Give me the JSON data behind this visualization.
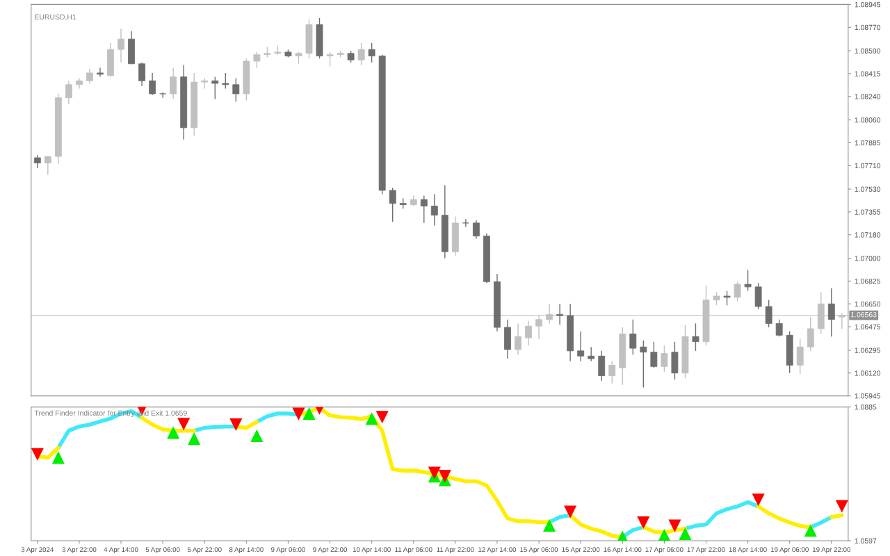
{
  "chart_data": [
    {
      "type": "candlestick",
      "title": "EURUSD,H1",
      "categories": [
        null,
        null,
        null,
        null,
        null,
        null,
        null,
        null,
        null,
        null,
        null,
        null,
        null,
        null,
        null,
        null,
        null,
        null,
        null,
        null,
        null,
        null,
        null,
        null,
        null,
        null,
        null,
        null,
        null,
        null,
        null,
        null,
        null,
        null,
        null,
        null,
        null,
        null,
        null,
        null,
        null,
        null,
        null,
        null,
        null,
        null,
        null,
        null,
        null,
        null,
        null,
        null,
        null,
        null,
        null,
        null,
        null,
        null,
        null,
        null,
        null,
        null,
        null,
        null,
        null,
        null,
        null,
        null,
        null,
        null,
        null,
        null,
        null,
        null,
        null,
        null,
        null,
        null
      ],
      "ohlc": [
        [
          1.0777,
          1.0779,
          1.0769,
          1.0773
        ],
        [
          1.0773,
          1.0778,
          1.0764,
          1.0778
        ],
        [
          1.0778,
          1.0826,
          1.0772,
          1.0823
        ],
        [
          1.0823,
          1.0836,
          1.0818,
          1.0833
        ],
        [
          1.0833,
          1.0838,
          1.083,
          1.0836
        ],
        [
          1.0836,
          1.0845,
          1.0834,
          1.0842
        ],
        [
          1.0842,
          1.0846,
          1.0839,
          1.0841
        ],
        [
          1.084,
          1.0865,
          1.0839,
          1.086
        ],
        [
          1.086,
          1.0876,
          1.085,
          1.0868
        ],
        [
          1.0868,
          1.0874,
          1.0849,
          1.0849
        ],
        [
          1.0849,
          1.085,
          1.0832,
          1.0836
        ],
        [
          1.0836,
          1.0842,
          1.0825,
          1.0826
        ],
        [
          1.0826,
          1.0827,
          1.0823,
          1.0826
        ],
        [
          1.0826,
          1.0846,
          1.0822,
          1.0839
        ],
        [
          1.0839,
          1.0848,
          1.0791,
          1.08
        ],
        [
          1.08,
          1.0842,
          1.0794,
          1.0835
        ],
        [
          1.0835,
          1.0838,
          1.083,
          1.0836
        ],
        [
          1.0836,
          1.0839,
          1.0822,
          1.0834
        ],
        [
          1.0834,
          1.0842,
          1.083,
          1.0833
        ],
        [
          1.0833,
          1.0838,
          1.082,
          1.0826
        ],
        [
          1.0826,
          1.0853,
          1.0821,
          1.0851
        ],
        [
          1.0851,
          1.0858,
          1.0846,
          1.0856
        ],
        [
          1.0856,
          1.0862,
          1.0854,
          1.0857
        ],
        [
          1.0857,
          1.0863,
          1.0856,
          1.0858
        ],
        [
          1.0858,
          1.086,
          1.0854,
          1.0855
        ],
        [
          1.0855,
          1.0858,
          1.0849,
          1.0857
        ],
        [
          1.0857,
          1.0883,
          1.0853,
          1.0879
        ],
        [
          1.0879,
          1.0884,
          1.0853,
          1.0855
        ],
        [
          1.0855,
          1.0858,
          1.0847,
          1.0856
        ],
        [
          1.0856,
          1.0859,
          1.0854,
          1.0857
        ],
        [
          1.0857,
          1.0859,
          1.085,
          1.0852
        ],
        [
          1.0852,
          1.0865,
          1.0848,
          1.086
        ],
        [
          1.086,
          1.0865,
          1.085,
          1.0855
        ],
        [
          1.0855,
          1.0856,
          1.0749,
          1.0752
        ],
        [
          1.0752,
          1.0754,
          1.0728,
          1.0742
        ],
        [
          1.0742,
          1.0746,
          1.0738,
          1.0741
        ],
        [
          1.0741,
          1.0748,
          1.074,
          1.0745
        ],
        [
          1.0745,
          1.0748,
          1.0727,
          1.074
        ],
        [
          1.074,
          1.0749,
          1.0725,
          1.0733
        ],
        [
          1.0733,
          1.0756,
          1.07,
          1.0705
        ],
        [
          1.0705,
          1.0732,
          1.0702,
          1.0727
        ],
        [
          1.0727,
          1.073,
          1.0724,
          1.0727
        ],
        [
          1.0727,
          1.0729,
          1.0715,
          1.0717
        ],
        [
          1.0717,
          1.0719,
          1.0681,
          1.0682
        ],
        [
          1.0682,
          1.0688,
          1.0644,
          1.0647
        ],
        [
          1.0647,
          1.0653,
          1.0623,
          1.063
        ],
        [
          1.063,
          1.065,
          1.0626,
          1.064
        ],
        [
          1.0639,
          1.0652,
          1.0633,
          1.0648
        ],
        [
          1.0648,
          1.0656,
          1.0638,
          1.0653
        ],
        [
          1.0653,
          1.0665,
          1.065,
          1.0657
        ],
        [
          1.0657,
          1.0665,
          1.0649,
          1.0656
        ],
        [
          1.0656,
          1.0665,
          1.0621,
          1.0629
        ],
        [
          1.0629,
          1.0644,
          1.0621,
          1.0625
        ],
        [
          1.0625,
          1.0632,
          1.0621,
          1.0623
        ],
        [
          1.0625,
          1.0629,
          1.0606,
          1.061
        ],
        [
          1.061,
          1.0621,
          1.0604,
          1.0618
        ],
        [
          1.0616,
          1.0647,
          1.0603,
          1.0642
        ],
        [
          1.0642,
          1.0653,
          1.0626,
          1.0631
        ],
        [
          1.0632,
          1.0637,
          1.0601,
          1.0628
        ],
        [
          1.0628,
          1.0636,
          1.0616,
          1.0617
        ],
        [
          1.0617,
          1.0633,
          1.0613,
          1.0627
        ],
        [
          1.0628,
          1.0636,
          1.0607,
          1.0612
        ],
        [
          1.0612,
          1.0649,
          1.0608,
          1.064
        ],
        [
          1.064,
          1.065,
          1.0629,
          1.0636
        ],
        [
          1.0636,
          1.0679,
          1.0633,
          1.0668
        ],
        [
          1.0668,
          1.0674,
          1.0664,
          1.0671
        ],
        [
          1.0671,
          1.0675,
          1.0664,
          1.067
        ],
        [
          1.067,
          1.0682,
          1.0667,
          1.068
        ],
        [
          1.068,
          1.0691,
          1.0675,
          1.0678
        ],
        [
          1.0678,
          1.0681,
          1.0661,
          1.0663
        ],
        [
          1.0663,
          1.0668,
          1.0647,
          1.065
        ],
        [
          1.065,
          1.0653,
          1.064,
          1.0641
        ],
        [
          1.0641,
          1.0644,
          1.0612,
          1.0618
        ],
        [
          1.0618,
          1.0638,
          1.0611,
          1.0632
        ],
        [
          1.0632,
          1.0655,
          1.0629,
          1.0646
        ],
        [
          1.0646,
          1.0674,
          1.0642,
          1.0665
        ],
        [
          1.0665,
          1.0677,
          1.064,
          1.0653
        ],
        [
          1.0655,
          1.0658,
          1.0646,
          1.0656
        ]
      ],
      "colors": [
        "#6e6e6e",
        "#c0c0c0",
        "#c0c0c0",
        "#c0c0c0",
        "#c0c0c0",
        "#c0c0c0",
        "#6e6e6e",
        "#c0c0c0",
        "#c0c0c0",
        "#6e6e6e",
        "#6e6e6e",
        "#6e6e6e",
        "#6e6e6e",
        "#c0c0c0",
        "#6e6e6e",
        "#c0c0c0",
        "#c0c0c0",
        "#6e6e6e",
        "#6e6e6e",
        "#6e6e6e",
        "#c0c0c0",
        "#c0c0c0",
        "#c0c0c0",
        "#c0c0c0",
        "#6e6e6e",
        "#c0c0c0",
        "#c0c0c0",
        "#6e6e6e",
        "#c0c0c0",
        "#c0c0c0",
        "#6e6e6e",
        "#c0c0c0",
        "#6e6e6e",
        "#6e6e6e",
        "#6e6e6e",
        "#6e6e6e",
        "#c0c0c0",
        "#6e6e6e",
        "#6e6e6e",
        "#6e6e6e",
        "#c0c0c0",
        "#6e6e6e",
        "#6e6e6e",
        "#6e6e6e",
        "#6e6e6e",
        "#6e6e6e",
        "#c0c0c0",
        "#c0c0c0",
        "#c0c0c0",
        "#c0c0c0",
        "#6e6e6e",
        "#6e6e6e",
        "#6e6e6e",
        "#6e6e6e",
        "#6e6e6e",
        "#c0c0c0",
        "#c0c0c0",
        "#6e6e6e",
        "#6e6e6e",
        "#6e6e6e",
        "#c0c0c0",
        "#6e6e6e",
        "#c0c0c0",
        "#6e6e6e",
        "#c0c0c0",
        "#c0c0c0",
        "#6e6e6e",
        "#c0c0c0",
        "#6e6e6e",
        "#6e6e6e",
        "#6e6e6e",
        "#6e6e6e",
        "#6e6e6e",
        "#c0c0c0",
        "#c0c0c0",
        "#c0c0c0",
        "#6e6e6e",
        "#c0c0c0"
      ],
      "ylim": [
        1.05945,
        1.08945
      ],
      "yticks": [
        {
          "value": 1.08945,
          "label": "1.08945"
        },
        {
          "value": 1.0877,
          "label": "1.08770"
        },
        {
          "value": 1.0859,
          "label": "1.08590"
        },
        {
          "value": 1.08415,
          "label": "1.08415"
        },
        {
          "value": 1.0824,
          "label": "1.08240"
        },
        {
          "value": 1.0806,
          "label": "1.08060"
        },
        {
          "value": 1.07885,
          "label": "1.07885"
        },
        {
          "value": 1.0771,
          "label": "1.07710"
        },
        {
          "value": 1.0753,
          "label": "1.07530"
        },
        {
          "value": 1.07355,
          "label": "1.07355"
        },
        {
          "value": 1.0718,
          "label": "1.07180"
        },
        {
          "value": 1.07,
          "label": "1.07000"
        },
        {
          "value": 1.06825,
          "label": "1.06825"
        },
        {
          "value": 1.0665,
          "label": "1.06650"
        },
        {
          "value": 1.06475,
          "label": "1.06475"
        },
        {
          "value": 1.06295,
          "label": "1.06295"
        },
        {
          "value": 1.0612,
          "label": "1.06120"
        },
        {
          "value": 1.05945,
          "label": "1.05945"
        }
      ],
      "ref_lines": [
        {
          "axis": "y",
          "value": 1.06563,
          "label": "1.06563",
          "color": "#c8c8c8"
        }
      ],
      "tick_labels": "y"
    },
    {
      "type": "line",
      "title": "Trend Finder Indicator for Entry and Exit 1.0659",
      "categories": [
        "3 Apr 2024",
        null,
        null,
        null,
        "3 Apr 22:00",
        null,
        null,
        null,
        "4 Apr 14:00",
        null,
        null,
        null,
        "5 Apr 06:00",
        null,
        null,
        null,
        "5 Apr 22:00",
        null,
        null,
        null,
        "8 Apr 14:00",
        null,
        null,
        null,
        "9 Apr 06:00",
        null,
        null,
        null,
        "9 Apr 22:00",
        null,
        null,
        null,
        "10 Apr 14:00",
        null,
        null,
        null,
        "11 Apr 06:00",
        null,
        null,
        null,
        "11 Apr 22:00",
        null,
        null,
        null,
        "12 Apr 14:00",
        null,
        null,
        null,
        "15 Apr 06:00",
        null,
        null,
        null,
        "15 Apr 22:00",
        null,
        null,
        null,
        "16 Apr 14:00",
        null,
        null,
        null,
        "17 Apr 06:00",
        null,
        null,
        null,
        "17 Apr 22:00",
        null,
        null,
        null,
        "18 Apr 14:00",
        null,
        null,
        null,
        "19 Apr 06:00",
        null,
        null,
        null,
        "19 Apr 22:00",
        null
      ],
      "series": [
        {
          "color": "#40e8f8",
          "values": [
            null,
            null,
            1.0797,
            1.0834,
            1.0843,
            1.0847,
            1.0854,
            1.086,
            1.0871,
            1.0876,
            1.0862,
            null,
            null,
            null,
            null,
            1.0834,
            1.084,
            1.0842,
            1.0843,
            1.0843,
            null,
            1.0853,
            1.0865,
            1.0871,
            1.0871,
            1.0868,
            null,
            null,
            null,
            null,
            null,
            null,
            null,
            null,
            null,
            null,
            null,
            null,
            null,
            null,
            null,
            null,
            null,
            null,
            null,
            null,
            null,
            null,
            null,
            1.0637,
            1.0648,
            1.0652,
            null,
            null,
            null,
            null,
            1.0605,
            1.062,
            1.0626,
            null,
            null,
            null,
            1.0623,
            1.0629,
            1.0632,
            1.0656,
            1.0665,
            1.0671,
            1.068,
            1.0671,
            null,
            null,
            null,
            null,
            1.0626,
            1.0636,
            1.0648,
            null
          ]
        },
        {
          "color": "#ffee00",
          "values": [
            1.0779,
            1.0776,
            1.0797,
            null,
            null,
            null,
            null,
            null,
            null,
            null,
            1.0862,
            1.0847,
            1.0837,
            1.0834,
            1.0834,
            1.0834,
            null,
            null,
            null,
            1.0843,
            1.084,
            1.0853,
            null,
            null,
            null,
            1.0868,
            1.0874,
            1.0883,
            1.0867,
            1.0863,
            1.0862,
            1.0859,
            1.0865,
            1.0834,
            1.0751,
            1.0748,
            1.0748,
            1.0745,
            1.074,
            1.0736,
            1.073,
            1.0725,
            1.0725,
            1.0716,
            1.0683,
            1.0645,
            1.0639,
            1.0639,
            1.0637,
            1.0637,
            null,
            1.0652,
            1.0632,
            1.0623,
            1.0617,
            1.0608,
            1.0605,
            null,
            1.0626,
            1.0617,
            1.0614,
            1.062,
            1.0623,
            null,
            null,
            null,
            null,
            null,
            null,
            1.0671,
            1.0656,
            1.0645,
            1.0636,
            1.0629,
            1.0626,
            null,
            1.0648,
            1.0652
          ]
        },
        {
          "type": "scatter",
          "marker": "triangle",
          "color": "#00ee00",
          "values": [
            null,
            null,
            1.0776,
            null,
            null,
            null,
            null,
            null,
            null,
            null,
            null,
            null,
            null,
            1.083,
            null,
            1.0817,
            null,
            null,
            null,
            null,
            null,
            1.0823,
            null,
            null,
            null,
            null,
            1.0871,
            null,
            null,
            null,
            null,
            null,
            1.086,
            null,
            null,
            null,
            null,
            null,
            1.0736,
            1.0728,
            null,
            null,
            null,
            null,
            null,
            null,
            null,
            null,
            null,
            1.063,
            null,
            null,
            null,
            null,
            null,
            null,
            1.0605,
            null,
            null,
            null,
            1.0609,
            null,
            1.0612,
            null,
            null,
            null,
            null,
            null,
            null,
            null,
            null,
            null,
            null,
            null,
            1.0619,
            null,
            null,
            null
          ]
        },
        {
          "type": "scatter",
          "marker": "triangle_down",
          "color": "#ff0000",
          "values": [
            1.0783,
            null,
            null,
            null,
            null,
            null,
            null,
            null,
            null,
            null,
            1.088,
            null,
            null,
            null,
            1.0848,
            null,
            null,
            null,
            null,
            1.0847,
            null,
            null,
            null,
            null,
            null,
            1.087,
            null,
            1.0882,
            null,
            null,
            null,
            null,
            null,
            1.0863,
            null,
            null,
            null,
            null,
            1.0743,
            1.0736,
            null,
            null,
            null,
            null,
            null,
            null,
            null,
            null,
            null,
            null,
            null,
            1.0659,
            null,
            null,
            null,
            null,
            null,
            null,
            1.0636,
            null,
            null,
            1.0629,
            null,
            null,
            null,
            null,
            null,
            null,
            null,
            1.0685,
            null,
            null,
            null,
            null,
            null,
            null,
            null,
            1.0671
          ]
        }
      ],
      "ylim": [
        1.0597,
        1.0885
      ],
      "yticks": [
        1.0597,
        1.0885
      ]
    }
  ]
}
